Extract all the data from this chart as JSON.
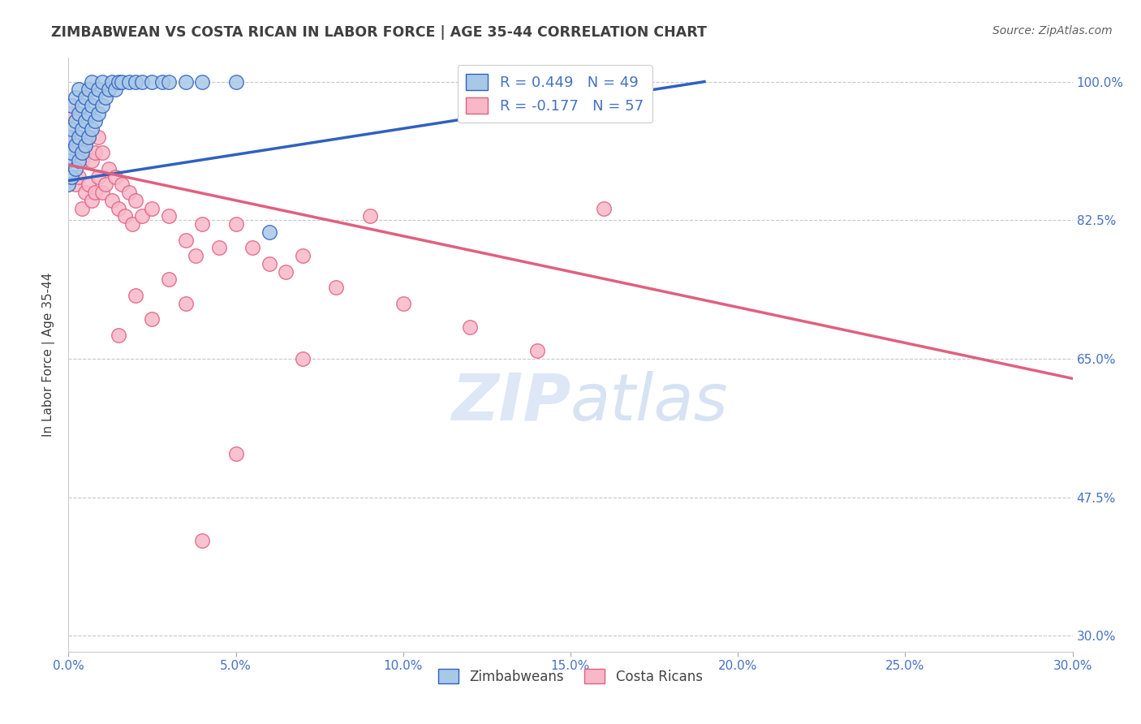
{
  "title": "ZIMBABWEAN VS COSTA RICAN IN LABOR FORCE | AGE 35-44 CORRELATION CHART",
  "source": "Source: ZipAtlas.com",
  "ylabel_label": "In Labor Force | Age 35-44",
  "legend_zimbabwe": "Zimbabweans",
  "legend_costarica": "Costa Ricans",
  "R_zimbabwe": 0.449,
  "N_zimbabwe": 49,
  "R_costarica": -0.177,
  "N_costarica": 57,
  "color_blue": "#a8c8e8",
  "color_pink": "#f8b8c8",
  "line_blue": "#3060c0",
  "line_pink": "#e06080",
  "bg_color": "#ffffff",
  "grid_color": "#c8c8c8",
  "title_color": "#404040",
  "source_color": "#606060",
  "tick_color_right": "#4472c4",
  "tick_color_bottom": "#4472c4",
  "xlim": [
    0.0,
    0.3
  ],
  "ylim": [
    0.28,
    1.03
  ],
  "x_tick_vals": [
    0.0,
    0.05,
    0.1,
    0.15,
    0.2,
    0.25,
    0.3
  ],
  "x_tick_labels": [
    "0.0%",
    "5.0%",
    "10.0%",
    "15.0%",
    "20.0%",
    "25.0%",
    "30.0%"
  ],
  "y_tick_vals": [
    0.3,
    0.475,
    0.65,
    0.825,
    1.0
  ],
  "y_tick_labels": [
    "30.0%",
    "47.5%",
    "65.0%",
    "82.5%",
    "100.0%"
  ],
  "zimbabwe_x": [
    0.0,
    0.0,
    0.0,
    0.001,
    0.001,
    0.001,
    0.001,
    0.002,
    0.002,
    0.002,
    0.002,
    0.003,
    0.003,
    0.003,
    0.003,
    0.004,
    0.004,
    0.004,
    0.005,
    0.005,
    0.005,
    0.006,
    0.006,
    0.006,
    0.007,
    0.007,
    0.007,
    0.008,
    0.008,
    0.009,
    0.009,
    0.01,
    0.01,
    0.011,
    0.012,
    0.013,
    0.014,
    0.015,
    0.016,
    0.018,
    0.02,
    0.022,
    0.025,
    0.028,
    0.03,
    0.035,
    0.04,
    0.05,
    0.06
  ],
  "zimbabwe_y": [
    0.87,
    0.9,
    0.93,
    0.88,
    0.91,
    0.94,
    0.97,
    0.89,
    0.92,
    0.95,
    0.98,
    0.9,
    0.93,
    0.96,
    0.99,
    0.91,
    0.94,
    0.97,
    0.92,
    0.95,
    0.98,
    0.93,
    0.96,
    0.99,
    0.94,
    0.97,
    1.0,
    0.95,
    0.98,
    0.96,
    0.99,
    0.97,
    1.0,
    0.98,
    0.99,
    1.0,
    0.99,
    1.0,
    1.0,
    1.0,
    1.0,
    1.0,
    1.0,
    1.0,
    1.0,
    1.0,
    1.0,
    1.0,
    0.81
  ],
  "costarica_x": [
    0.0,
    0.001,
    0.001,
    0.002,
    0.002,
    0.003,
    0.003,
    0.004,
    0.004,
    0.005,
    0.005,
    0.006,
    0.006,
    0.007,
    0.007,
    0.008,
    0.008,
    0.009,
    0.009,
    0.01,
    0.01,
    0.011,
    0.012,
    0.013,
    0.014,
    0.015,
    0.016,
    0.017,
    0.018,
    0.019,
    0.02,
    0.022,
    0.025,
    0.03,
    0.035,
    0.038,
    0.04,
    0.045,
    0.05,
    0.055,
    0.06,
    0.065,
    0.07,
    0.08,
    0.09,
    0.1,
    0.12,
    0.14,
    0.16,
    0.07,
    0.05,
    0.04,
    0.03,
    0.02,
    0.015,
    0.025,
    0.035
  ],
  "costarica_y": [
    0.91,
    0.93,
    0.96,
    0.87,
    0.92,
    0.88,
    0.93,
    0.84,
    0.9,
    0.86,
    0.91,
    0.87,
    0.93,
    0.85,
    0.9,
    0.86,
    0.91,
    0.88,
    0.93,
    0.86,
    0.91,
    0.87,
    0.89,
    0.85,
    0.88,
    0.84,
    0.87,
    0.83,
    0.86,
    0.82,
    0.85,
    0.83,
    0.84,
    0.83,
    0.8,
    0.78,
    0.82,
    0.79,
    0.82,
    0.79,
    0.77,
    0.76,
    0.78,
    0.74,
    0.83,
    0.72,
    0.69,
    0.66,
    0.84,
    0.65,
    0.53,
    0.42,
    0.75,
    0.73,
    0.68,
    0.7,
    0.72
  ],
  "blue_line_x": [
    0.0,
    0.19
  ],
  "blue_line_y": [
    0.875,
    1.0
  ],
  "pink_line_x": [
    0.0,
    0.3
  ],
  "pink_line_y": [
    0.895,
    0.625
  ]
}
